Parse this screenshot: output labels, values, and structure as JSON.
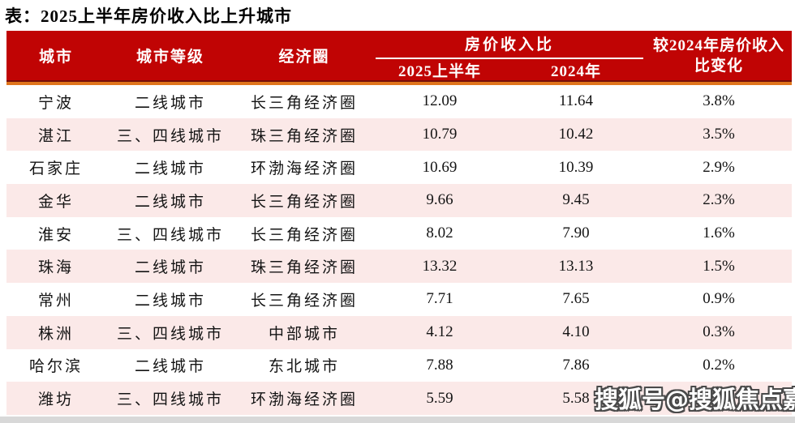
{
  "title": "表：2025上半年房价收入比上升城市",
  "chart_data": {
    "type": "table",
    "title": "表：2025上半年房价收入比上升城市",
    "header": {
      "city": "城市",
      "tier": "城市等级",
      "circle": "经济圈",
      "ratio_group": "房价收入比",
      "sub_2025h1": "2025上半年",
      "sub_2024": "2024年",
      "change": "较2024年房价收入比变化"
    },
    "rows": [
      {
        "city": "宁波",
        "tier": "二线城市",
        "circle": "长三角经济圈",
        "ratio_2025h1": "12.09",
        "ratio_2024": "11.64",
        "change": "3.8%"
      },
      {
        "city": "湛江",
        "tier": "三、四线城市",
        "circle": "珠三角经济圈",
        "ratio_2025h1": "10.79",
        "ratio_2024": "10.42",
        "change": "3.5%"
      },
      {
        "city": "石家庄",
        "tier": "二线城市",
        "circle": "环渤海经济圈",
        "ratio_2025h1": "10.69",
        "ratio_2024": "10.39",
        "change": "2.9%"
      },
      {
        "city": "金华",
        "tier": "二线城市",
        "circle": "长三角经济圈",
        "ratio_2025h1": "9.66",
        "ratio_2024": "9.45",
        "change": "2.3%"
      },
      {
        "city": "淮安",
        "tier": "三、四线城市",
        "circle": "长三角经济圈",
        "ratio_2025h1": "8.02",
        "ratio_2024": "7.90",
        "change": "1.6%"
      },
      {
        "city": "珠海",
        "tier": "二线城市",
        "circle": "珠三角经济圈",
        "ratio_2025h1": "13.32",
        "ratio_2024": "13.13",
        "change": "1.5%"
      },
      {
        "city": "常州",
        "tier": "二线城市",
        "circle": "长三角经济圈",
        "ratio_2025h1": "7.71",
        "ratio_2024": "7.65",
        "change": "0.9%"
      },
      {
        "city": "株洲",
        "tier": "三、四线城市",
        "circle": "中部城市",
        "ratio_2025h1": "4.12",
        "ratio_2024": "4.10",
        "change": "0.3%"
      },
      {
        "city": "哈尔滨",
        "tier": "二线城市",
        "circle": "东北城市",
        "ratio_2025h1": "7.88",
        "ratio_2024": "7.86",
        "change": "0.2%"
      },
      {
        "city": "潍坊",
        "tier": "三、四线城市",
        "circle": "环渤海经济圈",
        "ratio_2025h1": "5.59",
        "ratio_2024": "5.58",
        "change": "0.2%"
      }
    ]
  },
  "watermark": {
    "text": "搜狐号@搜狐焦点嘉峪关站"
  },
  "colors": {
    "header_bg": "#c00404",
    "header_text": "#ffffff",
    "header_dark_rule": "#75100a",
    "accent_orange_rule": "#e0751c",
    "row_alt_pink": "#fbe9e8",
    "row_white": "#ffffff",
    "body_text": "#141414",
    "bottom_strip": "#d8d8d8",
    "watermark_fill": "#ffffff",
    "watermark_outline": "#4a4a4a"
  }
}
